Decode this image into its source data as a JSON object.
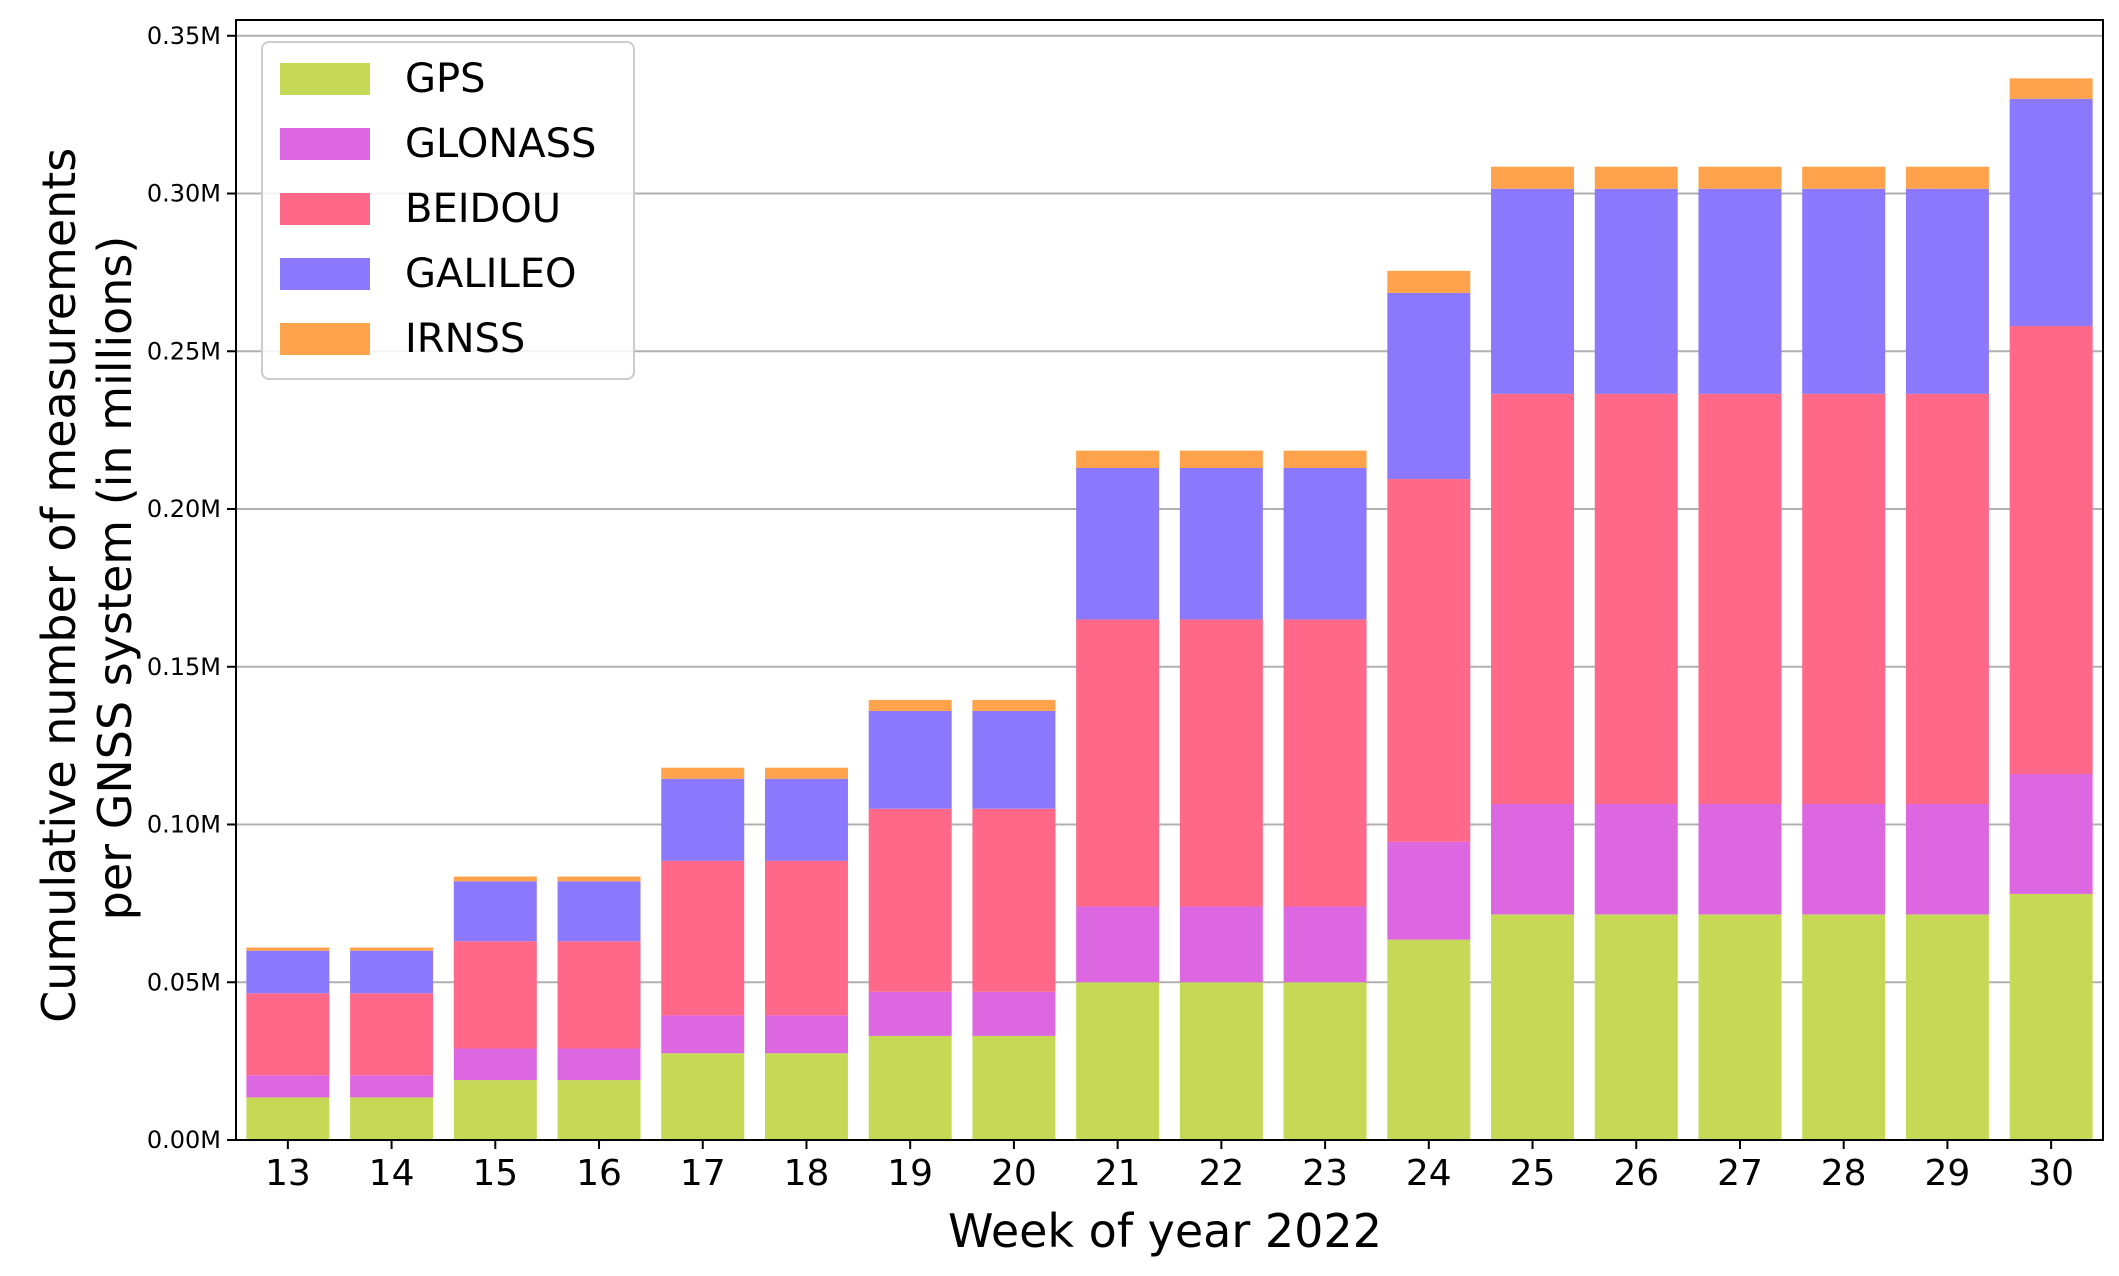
{
  "chart_data": {
    "type": "bar",
    "stacked": true,
    "xlabel": "Week of year 2022",
    "ylabel_lines": [
      "Cumulative number of measurements",
      "per GNSS system (in millions)"
    ],
    "categories": [
      "13",
      "14",
      "15",
      "16",
      "17",
      "18",
      "19",
      "20",
      "21",
      "22",
      "23",
      "24",
      "25",
      "26",
      "27",
      "28",
      "29",
      "30"
    ],
    "ylim": [
      0,
      0.355
    ],
    "yticks": [
      0,
      0.05,
      0.1,
      0.15,
      0.2,
      0.25,
      0.3,
      0.35
    ],
    "ytick_labels": [
      "0.00M",
      "0.05M",
      "0.10M",
      "0.15M",
      "0.20M",
      "0.25M",
      "0.30M",
      "0.35M"
    ],
    "grid": "horizontal",
    "legend_position": "top-left",
    "series": [
      {
        "name": "GPS",
        "color": "#c5d957",
        "values": [
          0.0135,
          0.0135,
          0.019,
          0.019,
          0.0275,
          0.0275,
          0.033,
          0.033,
          0.05,
          0.05,
          0.05,
          0.0635,
          0.0715,
          0.0715,
          0.0715,
          0.0715,
          0.0715,
          0.078
        ]
      },
      {
        "name": "GLONASS",
        "color": "#dd67e0",
        "values": [
          0.007,
          0.007,
          0.01,
          0.01,
          0.012,
          0.012,
          0.014,
          0.014,
          0.024,
          0.024,
          0.024,
          0.031,
          0.035,
          0.035,
          0.035,
          0.035,
          0.035,
          0.038
        ]
      },
      {
        "name": "BEIDOU",
        "color": "#ff6888",
        "values": [
          0.026,
          0.026,
          0.034,
          0.034,
          0.049,
          0.049,
          0.058,
          0.058,
          0.091,
          0.091,
          0.091,
          0.115,
          0.13,
          0.13,
          0.13,
          0.13,
          0.13,
          0.142
        ]
      },
      {
        "name": "GALILEO",
        "color": "#8c78fc",
        "values": [
          0.0135,
          0.0135,
          0.019,
          0.019,
          0.026,
          0.026,
          0.031,
          0.031,
          0.048,
          0.048,
          0.048,
          0.059,
          0.065,
          0.065,
          0.065,
          0.065,
          0.065,
          0.072
        ]
      },
      {
        "name": "IRNSS",
        "color": "#ffa24c",
        "values": [
          0.001,
          0.001,
          0.0015,
          0.0015,
          0.0035,
          0.0035,
          0.0035,
          0.0035,
          0.0055,
          0.0055,
          0.0055,
          0.007,
          0.007,
          0.007,
          0.007,
          0.007,
          0.007,
          0.0065
        ]
      }
    ]
  }
}
